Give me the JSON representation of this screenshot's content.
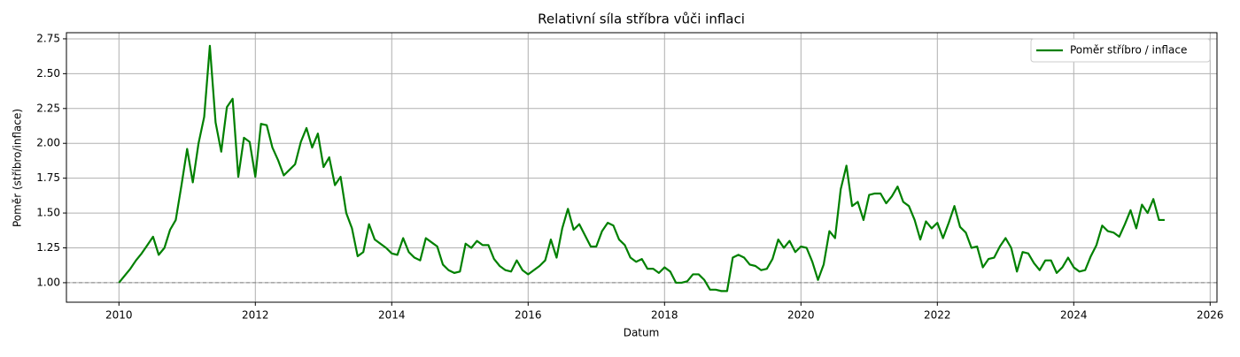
{
  "chart_data": {
    "type": "line",
    "title": "Relativní síla stříbra vůči inflaci",
    "xlabel": "Datum",
    "ylabel": "Poměr (stříbro/inflace)",
    "x": [
      2010,
      2010.083,
      2010.167,
      2010.25,
      2010.333,
      2010.417,
      2010.5,
      2010.583,
      2010.667,
      2010.75,
      2010.833,
      2010.917,
      2011,
      2011.083,
      2011.167,
      2011.25,
      2011.333,
      2011.417,
      2011.5,
      2011.583,
      2011.667,
      2011.75,
      2011.833,
      2011.917,
      2012,
      2012.083,
      2012.167,
      2012.25,
      2012.333,
      2012.417,
      2012.5,
      2012.583,
      2012.667,
      2012.75,
      2012.833,
      2012.917,
      2013,
      2013.083,
      2013.167,
      2013.25,
      2013.333,
      2013.417,
      2013.5,
      2013.583,
      2013.667,
      2013.75,
      2013.833,
      2013.917,
      2014,
      2014.083,
      2014.167,
      2014.25,
      2014.333,
      2014.417,
      2014.5,
      2014.583,
      2014.667,
      2014.75,
      2014.833,
      2014.917,
      2015,
      2015.083,
      2015.167,
      2015.25,
      2015.333,
      2015.417,
      2015.5,
      2015.583,
      2015.667,
      2015.75,
      2015.833,
      2015.917,
      2016,
      2016.083,
      2016.167,
      2016.25,
      2016.333,
      2016.417,
      2016.5,
      2016.583,
      2016.667,
      2016.75,
      2016.833,
      2016.917,
      2017,
      2017.083,
      2017.167,
      2017.25,
      2017.333,
      2017.417,
      2017.5,
      2017.583,
      2017.667,
      2017.75,
      2017.833,
      2017.917,
      2018,
      2018.083,
      2018.167,
      2018.25,
      2018.333,
      2018.417,
      2018.5,
      2018.583,
      2018.667,
      2018.75,
      2018.833,
      2018.917,
      2019,
      2019.083,
      2019.167,
      2019.25,
      2019.333,
      2019.417,
      2019.5,
      2019.583,
      2019.667,
      2019.75,
      2019.833,
      2019.917,
      2020,
      2020.083,
      2020.167,
      2020.25,
      2020.333,
      2020.417,
      2020.5,
      2020.583,
      2020.667,
      2020.75,
      2020.833,
      2020.917,
      2021,
      2021.083,
      2021.167,
      2021.25,
      2021.333,
      2021.417,
      2021.5,
      2021.583,
      2021.667,
      2021.75,
      2021.833,
      2021.917,
      2022,
      2022.083,
      2022.167,
      2022.25,
      2022.333,
      2022.417,
      2022.5,
      2022.583,
      2022.667,
      2022.75,
      2022.833,
      2022.917,
      2023,
      2023.083,
      2023.167,
      2023.25,
      2023.333,
      2023.417,
      2023.5,
      2023.583,
      2023.667,
      2023.75,
      2023.833,
      2023.917,
      2024,
      2024.083,
      2024.167,
      2024.25,
      2024.333,
      2024.417,
      2024.5,
      2024.583,
      2024.667,
      2024.75,
      2024.833,
      2024.917,
      2025,
      2025.083,
      2025.167,
      2025.25,
      2025.333
    ],
    "series": [
      {
        "name": "Poměr stříbro / inflace",
        "color": "#008000",
        "values": [
          1.0,
          1.05,
          1.1,
          1.16,
          1.21,
          1.27,
          1.33,
          1.2,
          1.25,
          1.38,
          1.45,
          1.7,
          1.96,
          1.72,
          2.0,
          2.19,
          2.7,
          2.15,
          1.94,
          2.26,
          2.32,
          1.76,
          2.04,
          2.01,
          1.76,
          2.14,
          2.13,
          1.97,
          1.88,
          1.77,
          1.81,
          1.85,
          2.01,
          2.11,
          1.97,
          2.07,
          1.83,
          1.9,
          1.7,
          1.76,
          1.5,
          1.39,
          1.19,
          1.22,
          1.42,
          1.31,
          1.28,
          1.25,
          1.21,
          1.2,
          1.32,
          1.22,
          1.18,
          1.16,
          1.32,
          1.29,
          1.26,
          1.13,
          1.09,
          1.07,
          1.08,
          1.28,
          1.25,
          1.3,
          1.27,
          1.27,
          1.17,
          1.12,
          1.09,
          1.08,
          1.16,
          1.09,
          1.06,
          1.09,
          1.12,
          1.16,
          1.31,
          1.18,
          1.39,
          1.53,
          1.38,
          1.42,
          1.34,
          1.26,
          1.26,
          1.37,
          1.43,
          1.41,
          1.31,
          1.27,
          1.18,
          1.15,
          1.17,
          1.1,
          1.1,
          1.07,
          1.11,
          1.08,
          1.0,
          1.0,
          1.01,
          1.06,
          1.06,
          1.02,
          0.95,
          0.95,
          0.94,
          0.94,
          1.18,
          1.2,
          1.18,
          1.13,
          1.12,
          1.09,
          1.1,
          1.17,
          1.31,
          1.25,
          1.3,
          1.22,
          1.26,
          1.25,
          1.15,
          1.02,
          1.13,
          1.37,
          1.32,
          1.67,
          1.84,
          1.55,
          1.58,
          1.45,
          1.63,
          1.64,
          1.64,
          1.57,
          1.62,
          1.69,
          1.58,
          1.55,
          1.45,
          1.31,
          1.44,
          1.39,
          1.43,
          1.32,
          1.43,
          1.55,
          1.4,
          1.36,
          1.25,
          1.26,
          1.11,
          1.17,
          1.18,
          1.26,
          1.32,
          1.25,
          1.08,
          1.22,
          1.21,
          1.14,
          1.09,
          1.16,
          1.16,
          1.07,
          1.11,
          1.18,
          1.11,
          1.08,
          1.09,
          1.19,
          1.27,
          1.41,
          1.37,
          1.36,
          1.33,
          1.42,
          1.52,
          1.39,
          1.56,
          1.5,
          1.6,
          1.45,
          1.45
        ]
      }
    ],
    "xlim": [
      2009.23,
      2026.1
    ],
    "xticks": [
      2010,
      2012,
      2014,
      2016,
      2018,
      2020,
      2022,
      2024,
      2026
    ],
    "ylim": [
      0.86,
      2.794
    ],
    "yticks": [
      {
        "value": 1,
        "label": "1.00"
      },
      1.25,
      {
        "value": 1.5,
        "label": "1.50"
      },
      1.75,
      {
        "value": 2,
        "label": "2.00"
      },
      2.25,
      {
        "value": 2.5,
        "label": "2.50"
      },
      2.75
    ],
    "hline": 1,
    "grid": true,
    "legend": "upper right"
  }
}
